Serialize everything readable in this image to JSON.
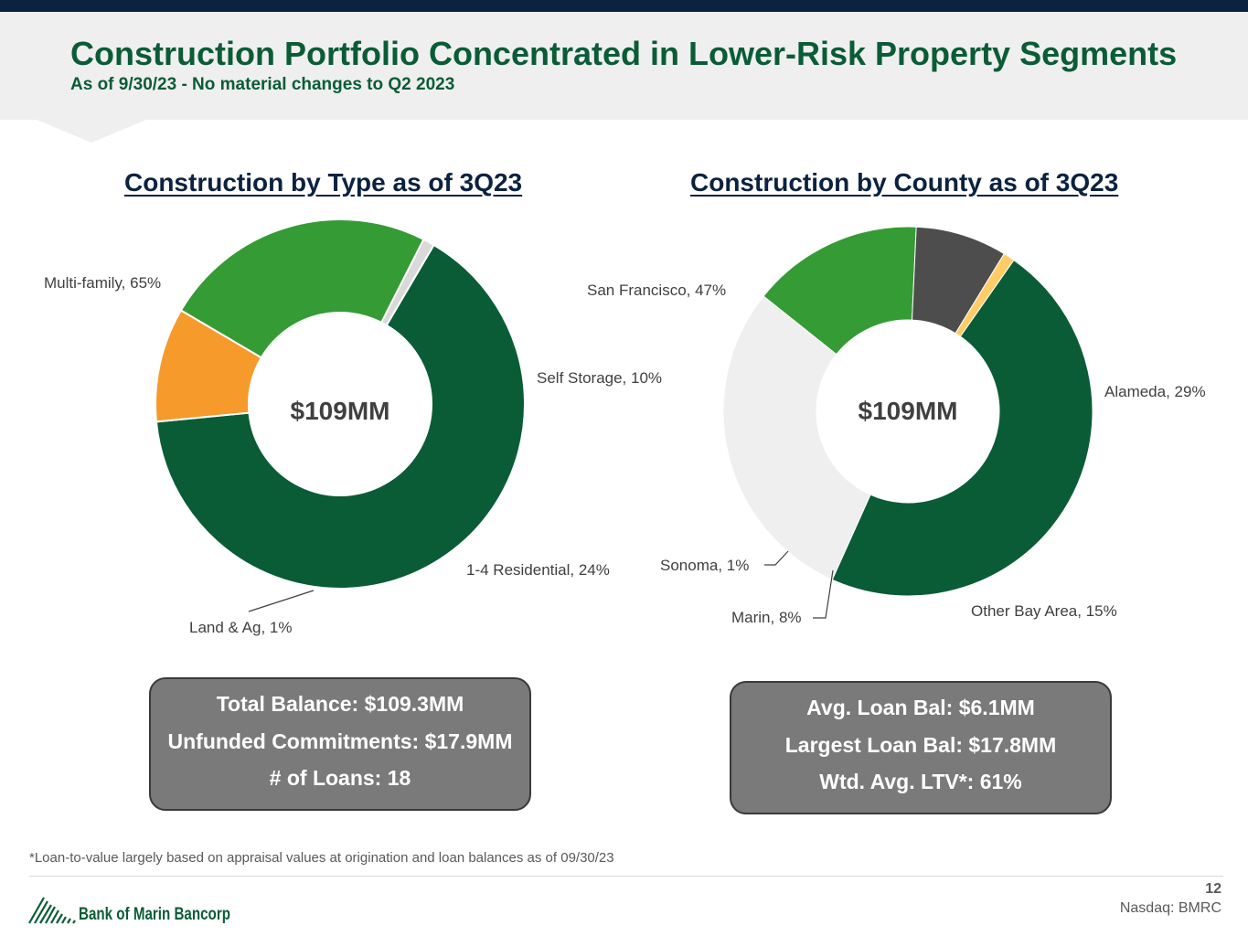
{
  "header": {
    "title": "Construction Portfolio Concentrated in Lower-Risk Property Segments",
    "subtitle": "As of 9/30/23 - No material changes to Q2 2023"
  },
  "colors": {
    "dark_green": "#0a5c36",
    "orange": "#f59a2b",
    "medium_green": "#359b35",
    "light_gray": "#d9d9d9",
    "very_light_gray": "#efefef",
    "dark_gray": "#4d4d4d",
    "yellow": "#ffcc66",
    "navy": "#0b2240"
  },
  "chart_data": [
    {
      "type": "pie",
      "title": "Construction by Type as of 3Q23",
      "center_label": "$109MM",
      "categories": [
        "Multi-family",
        "Self Storage",
        "1-4 Residential",
        "Land & Ag"
      ],
      "values": [
        65,
        10,
        24,
        1
      ],
      "labels": [
        "Multi-family, 65%",
        "Self Storage, 10%",
        "1-4 Residential, 24%",
        "Land & Ag, 1%"
      ],
      "colors": [
        "#0a5c36",
        "#f59a2b",
        "#359b35",
        "#d9d9d9"
      ]
    },
    {
      "type": "pie",
      "title": "Construction by County as of 3Q23",
      "center_label": "$109MM",
      "categories": [
        "San Francisco",
        "Alameda",
        "Other Bay Area",
        "Marin",
        "Sonoma"
      ],
      "values": [
        47,
        29,
        15,
        8,
        1
      ],
      "labels": [
        "San Francisco, 47%",
        "Alameda, 29%",
        "Other Bay Area, 15%",
        "Marin, 8%",
        "Sonoma, 1%"
      ],
      "colors": [
        "#0a5c36",
        "#efefef",
        "#359b35",
        "#4d4d4d",
        "#ffcc66"
      ]
    }
  ],
  "stats_left": [
    "Total Balance: $109.3MM",
    "Unfunded Commitments: $17.9MM",
    "# of Loans: 18"
  ],
  "stats_right": [
    "Avg. Loan Bal: $6.1MM",
    "Largest Loan Bal: $17.8MM",
    "Wtd. Avg. LTV*: 61%"
  ],
  "footnote": "*Loan-to-value largely based on appraisal values at origination and loan balances as of 09/30/23",
  "footer": {
    "company": "Bank of Marin Bancorp",
    "page_number": "12",
    "ticker": "Nasdaq: BMRC"
  }
}
